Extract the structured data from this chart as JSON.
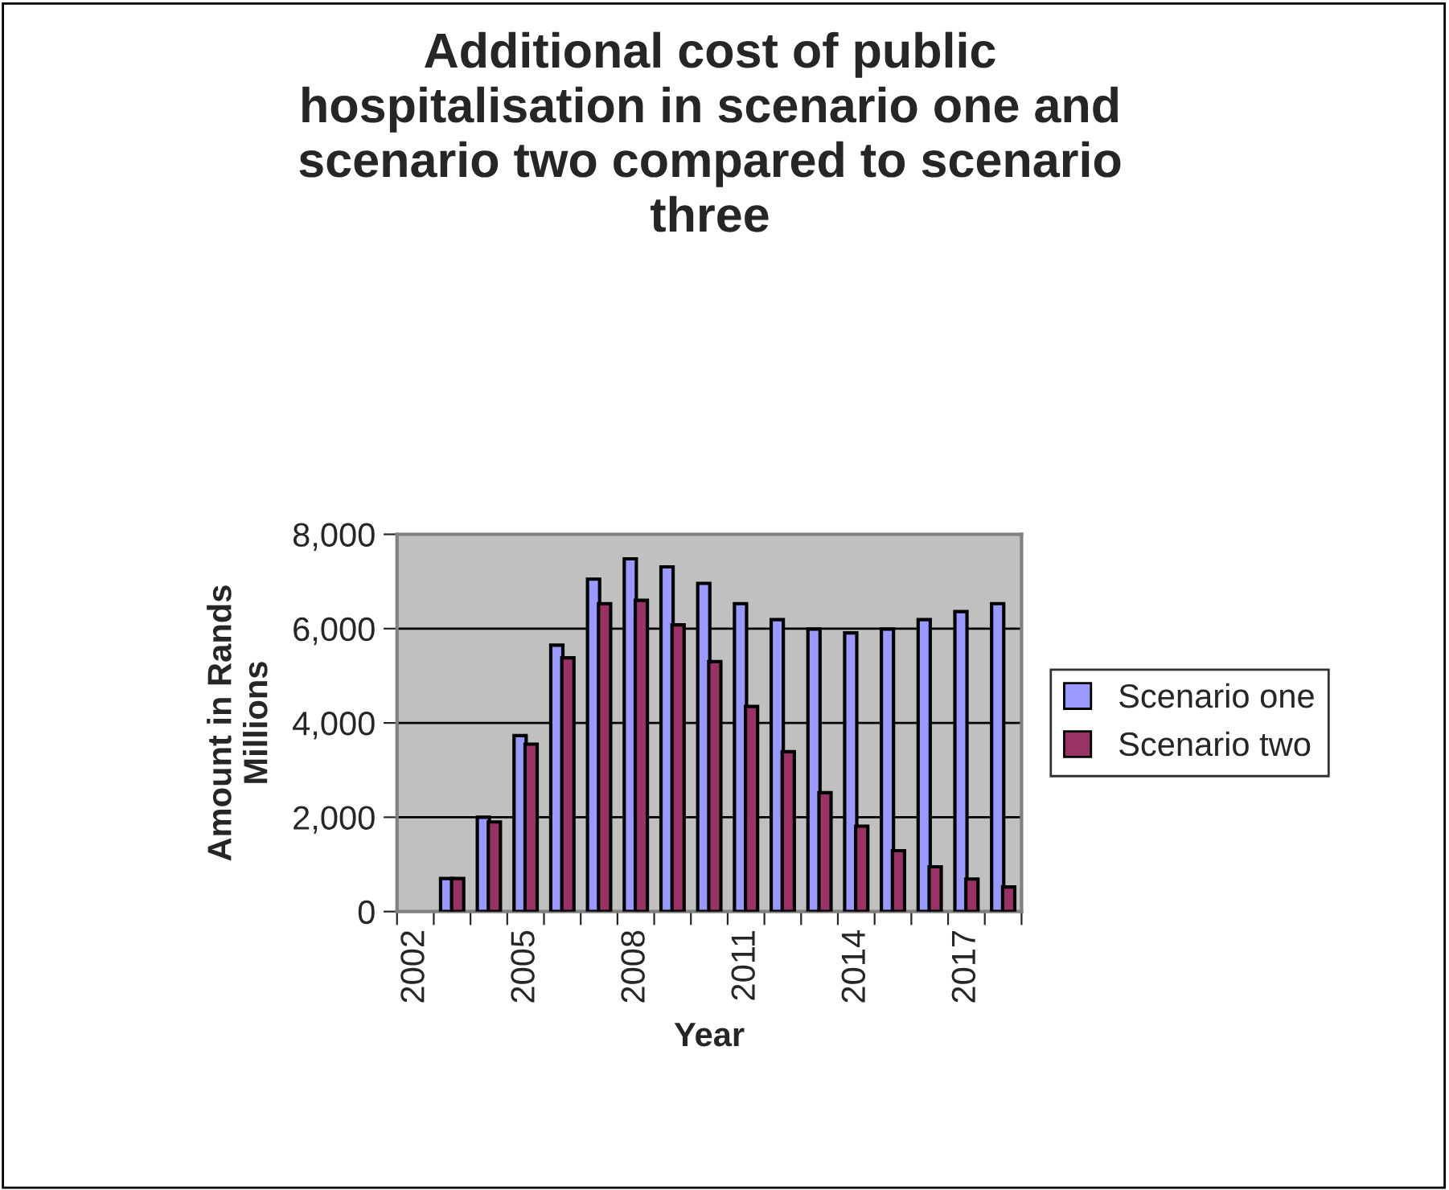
{
  "chart_data": {
    "type": "bar",
    "title": "Additional cost of public hospitalisation in scenario one and scenario two compared to scenario three",
    "xlabel": "Year",
    "ylabel": "Amount in Rands Millions",
    "categories": [
      "2002",
      null,
      null,
      "2005",
      null,
      null,
      "2008",
      null,
      null,
      "2011",
      null,
      null,
      "2014",
      null,
      null,
      "2017",
      null
    ],
    "series": [
      {
        "name": "Scenario one",
        "color": "#9999ff",
        "values": [
          null,
          700,
          2000,
          3730,
          5650,
          7050,
          7480,
          7310,
          6960,
          6530,
          6190,
          5990,
          5910,
          5990,
          6190,
          6360,
          6530
        ]
      },
      {
        "name": "Scenario two",
        "color": "#993366",
        "values": [
          null,
          700,
          1900,
          3550,
          5380,
          6530,
          6600,
          6080,
          5300,
          4350,
          3390,
          2520,
          1810,
          1290,
          950,
          690,
          520
        ]
      }
    ],
    "ylim": [
      0,
      8000
    ],
    "yticks": [
      {
        "value": 0,
        "label": "0"
      },
      {
        "value": 2000,
        "label": "2,000"
      },
      {
        "value": 4000,
        "label": "4,000"
      },
      {
        "value": 6000,
        "label": "6,000"
      },
      {
        "value": 8000,
        "label": "8,000"
      }
    ],
    "grid": "y",
    "legend": "right"
  }
}
